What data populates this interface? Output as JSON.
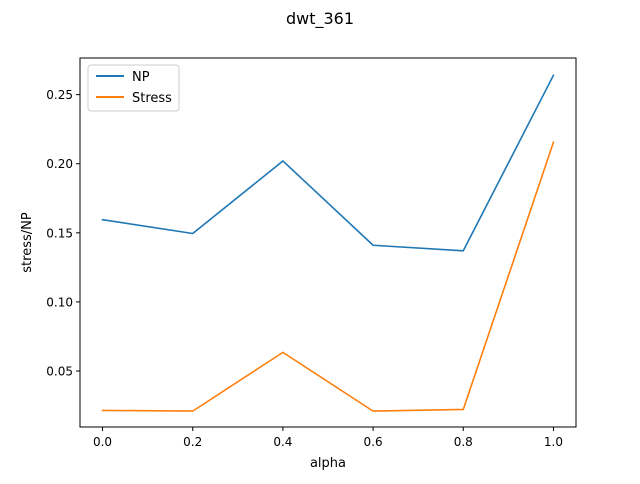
{
  "chart_data": {
    "type": "line",
    "title": "dwt_361",
    "xlabel": "alpha",
    "ylabel": "stress/NP",
    "x": [
      0.0,
      0.2,
      0.4,
      0.6,
      0.8,
      1.0
    ],
    "x_tick_values": [
      0.0,
      0.2,
      0.4,
      0.6,
      0.8,
      1.0
    ],
    "x_tick_labels": [
      "0.0",
      "0.2",
      "0.4",
      "0.6",
      "0.8",
      "1.0"
    ],
    "y_tick_values": [
      0.05,
      0.1,
      0.15,
      0.2,
      0.25
    ],
    "y_tick_labels": [
      "0.05",
      "0.10",
      "0.15",
      "0.20",
      "0.25"
    ],
    "xlim": [
      -0.05,
      1.05
    ],
    "ylim": [
      0.0095,
      0.2765
    ],
    "grid": false,
    "legend_position": "upper-left",
    "series": [
      {
        "name": "NP",
        "color": "#1f77b4",
        "values": [
          0.1595,
          0.1495,
          0.202,
          0.141,
          0.137,
          0.264
        ]
      },
      {
        "name": "Stress",
        "color": "#ff7f0e",
        "values": [
          0.0215,
          0.021,
          0.0635,
          0.021,
          0.0222,
          0.2155
        ]
      }
    ]
  }
}
